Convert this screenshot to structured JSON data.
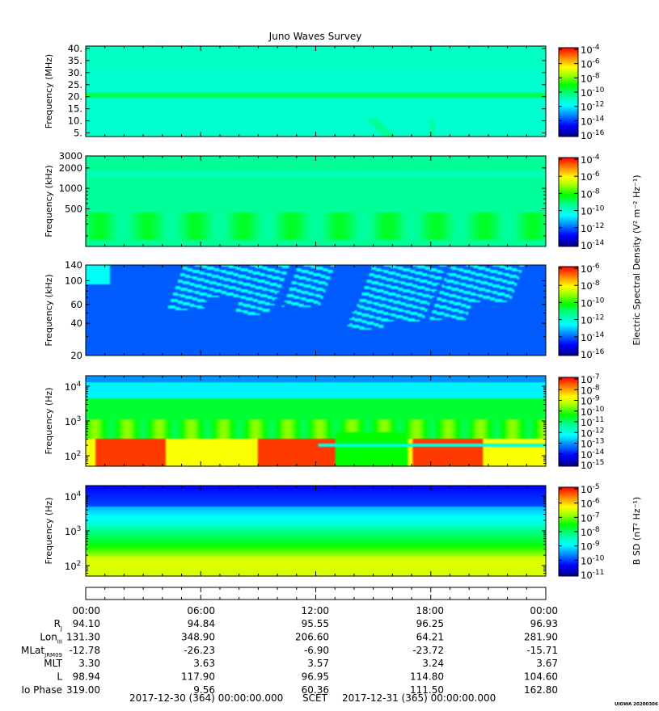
{
  "chart_data": {
    "type": "heatmap",
    "title": "Juno Waves Survey",
    "credit": "UIOWA 20200306",
    "panels": [
      {
        "id": "p1",
        "ylabel": "Frequency (MHz)",
        "yscale": "linear",
        "ylim": [
          3.5,
          41
        ],
        "yticks": [
          {
            "v": 40,
            "label": "40."
          },
          {
            "v": 35,
            "label": "35."
          },
          {
            "v": 30,
            "label": "30."
          },
          {
            "v": 25,
            "label": "25."
          },
          {
            "v": 20,
            "label": "20."
          },
          {
            "v": 15,
            "label": "15."
          },
          {
            "v": 10,
            "label": "10."
          },
          {
            "v": 5,
            "label": "5."
          }
        ],
        "colorbar": {
          "label": "",
          "ticks": [
            {
              "base": "10",
              "exp": "-4"
            },
            {
              "base": "10",
              "exp": "-6"
            },
            {
              "base": "10",
              "exp": "-8"
            },
            {
              "base": "10",
              "exp": "-10"
            },
            {
              "base": "10",
              "exp": "-12"
            },
            {
              "base": "10",
              "exp": "-14"
            },
            {
              "base": "10",
              "exp": "-16"
            }
          ]
        }
      },
      {
        "id": "p2",
        "ylabel": "Frequency (kHz)",
        "yscale": "log",
        "ylim": [
          140,
          3000
        ],
        "yticks": [
          {
            "v": 3000,
            "label": "3000"
          },
          {
            "v": 2000,
            "label": "2000"
          },
          {
            "v": 1000,
            "label": "1000"
          },
          {
            "v": 500,
            "label": "500"
          }
        ],
        "colorbar": {
          "label": "",
          "ticks": [
            {
              "base": "10",
              "exp": "-4"
            },
            {
              "base": "10",
              "exp": "-6"
            },
            {
              "base": "10",
              "exp": "-8"
            },
            {
              "base": "10",
              "exp": "-10"
            },
            {
              "base": "10",
              "exp": "-12"
            },
            {
              "base": "10",
              "exp": "-14"
            }
          ]
        }
      },
      {
        "id": "p3",
        "ylabel": "Frequency (kHz)",
        "yscale": "log",
        "ylim": [
          20,
          140
        ],
        "yticks": [
          {
            "v": 140,
            "label": "140"
          },
          {
            "v": 100,
            "label": "100"
          },
          {
            "v": 60,
            "label": "60"
          },
          {
            "v": 40,
            "label": "40"
          },
          {
            "v": 20,
            "label": "20"
          }
        ],
        "colorbar": {
          "label": "Electric Spectral Density (V² m⁻² Hz⁻¹)",
          "ticks": [
            {
              "base": "10",
              "exp": "-6"
            },
            {
              "base": "10",
              "exp": "-8"
            },
            {
              "base": "10",
              "exp": "-10"
            },
            {
              "base": "10",
              "exp": "-12"
            },
            {
              "base": "10",
              "exp": "-14"
            },
            {
              "base": "10",
              "exp": "-16"
            }
          ]
        }
      },
      {
        "id": "p4",
        "ylabel": "Frequency (Hz)",
        "yscale": "log",
        "ylim": [
          50,
          20000
        ],
        "yticks": [
          {
            "v": 10000,
            "base": "10",
            "exp": "4"
          },
          {
            "v": 1000,
            "base": "10",
            "exp": "3"
          },
          {
            "v": 100,
            "base": "10",
            "exp": "2"
          }
        ],
        "colorbar": {
          "label": "",
          "ticks": [
            {
              "base": "10",
              "exp": "-7"
            },
            {
              "base": "10",
              "exp": "-8"
            },
            {
              "base": "10",
              "exp": "-9"
            },
            {
              "base": "10",
              "exp": "-10"
            },
            {
              "base": "10",
              "exp": "-11"
            },
            {
              "base": "10",
              "exp": "-12"
            },
            {
              "base": "10",
              "exp": "-13"
            },
            {
              "base": "10",
              "exp": "-14"
            },
            {
              "base": "10",
              "exp": "-15"
            }
          ]
        }
      },
      {
        "id": "p5",
        "ylabel": "Frequency (Hz)",
        "yscale": "log",
        "ylim": [
          50,
          20000
        ],
        "yticks": [
          {
            "v": 10000,
            "base": "10",
            "exp": "4"
          },
          {
            "v": 1000,
            "base": "10",
            "exp": "3"
          },
          {
            "v": 100,
            "base": "10",
            "exp": "2"
          }
        ],
        "colorbar": {
          "label": "B SD (nT² Hz⁻¹)",
          "ticks": [
            {
              "base": "10",
              "exp": "-5"
            },
            {
              "base": "10",
              "exp": "-6"
            },
            {
              "base": "10",
              "exp": "-7"
            },
            {
              "base": "10",
              "exp": "-8"
            },
            {
              "base": "10",
              "exp": "-9"
            },
            {
              "base": "10",
              "exp": "-10"
            },
            {
              "base": "10",
              "exp": "-11"
            }
          ]
        }
      }
    ],
    "xaxis": {
      "ticks": [
        "00:00",
        "06:00",
        "12:00",
        "18:00",
        "00:00"
      ],
      "xlim_hours": [
        0,
        24
      ],
      "ephemeris": [
        {
          "label": "R",
          "sub": "J",
          "values": [
            "94.10",
            "94.84",
            "95.55",
            "96.25",
            "96.93"
          ]
        },
        {
          "label": "Lon",
          "sub": "III",
          "values": [
            "131.30",
            "348.90",
            "206.60",
            "64.21",
            "281.90"
          ]
        },
        {
          "label": "MLat",
          "sub": "JRM09",
          "values": [
            "-12.78",
            "-26.23",
            "-6.90",
            "-23.72",
            "-15.71"
          ]
        },
        {
          "label": "MLT",
          "sub": "",
          "values": [
            "3.30",
            "3.63",
            "3.57",
            "3.24",
            "3.67"
          ]
        },
        {
          "label": "L",
          "sub": "",
          "values": [
            "98.94",
            "117.90",
            "96.95",
            "114.80",
            "104.60"
          ]
        },
        {
          "label": "Io Phase",
          "sub": "",
          "values": [
            "319.00",
            "9.56",
            "60.36",
            "111.50",
            "162.80"
          ]
        }
      ],
      "date_start": "2017-12-30 (364) 00:00:00.000",
      "scet_label": "SCET",
      "date_end": "2017-12-31 (365) 00:00:00.000"
    }
  }
}
